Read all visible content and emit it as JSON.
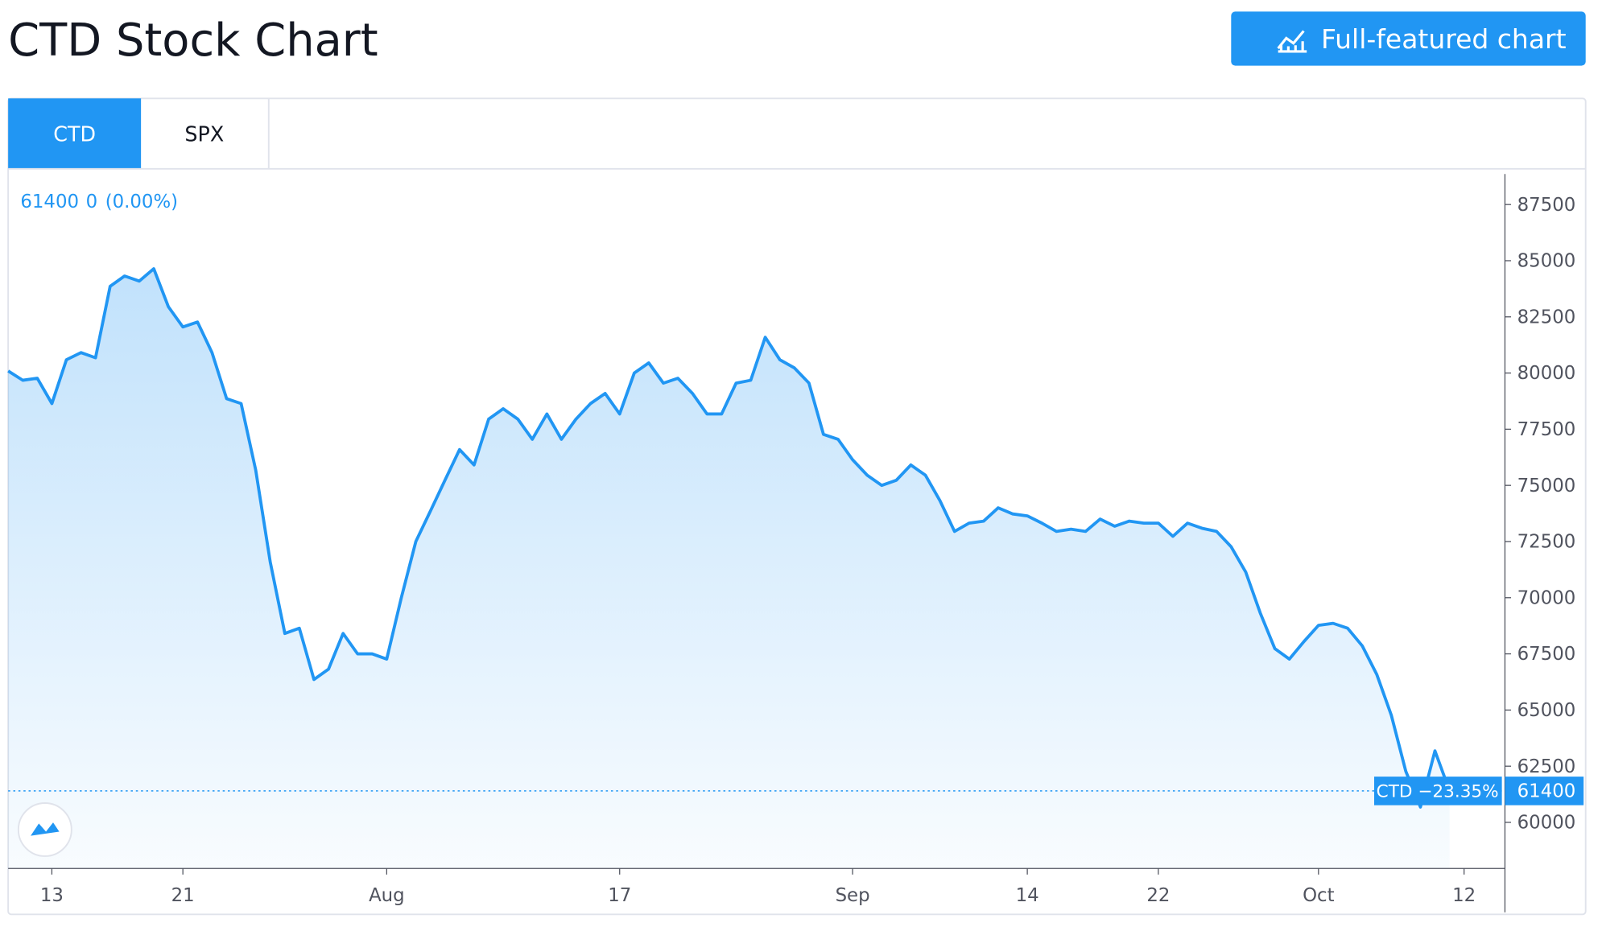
{
  "header": {
    "title": "CTD Stock Chart",
    "button": "Full-featured chart"
  },
  "tabs": [
    "CTD",
    "SPX"
  ],
  "chart_data": {
    "type": "area",
    "legend_text": {
      "price": "61400",
      "change": "0",
      "change_pct": "(0.00%)"
    },
    "last_label": {
      "text": "CTD −23.35%",
      "value": 61400
    },
    "color": "#2196f3",
    "categories": [
      null,
      null,
      null,
      "13",
      null,
      null,
      null,
      null,
      null,
      null,
      null,
      null,
      "21",
      null,
      null,
      null,
      null,
      null,
      null,
      null,
      null,
      null,
      null,
      null,
      null,
      null,
      "Aug",
      null,
      null,
      null,
      null,
      null,
      null,
      null,
      null,
      null,
      null,
      null,
      null,
      null,
      null,
      null,
      "17",
      null,
      null,
      null,
      null,
      null,
      null,
      null,
      null,
      null,
      null,
      null,
      null,
      null,
      null,
      null,
      "Sep",
      null,
      null,
      null,
      null,
      null,
      null,
      null,
      null,
      null,
      null,
      null,
      "14",
      null,
      null,
      null,
      null,
      null,
      null,
      null,
      null,
      "22",
      null,
      null,
      null,
      null,
      null,
      null,
      null,
      null,
      null,
      null,
      "Oct",
      null,
      null,
      null,
      null,
      null,
      null,
      null,
      null,
      null,
      "12"
    ],
    "values": [
      80090,
      79680,
      79770,
      78640,
      80590,
      80910,
      80680,
      83860,
      84320,
      84090,
      84640,
      82950,
      82050,
      82270,
      80910,
      78860,
      78640,
      75680,
      71590,
      68410,
      68640,
      66360,
      66820,
      68410,
      67500,
      67500,
      67270,
      70000,
      72500,
      73860,
      75230,
      76590,
      75910,
      77950,
      78410,
      77950,
      77050,
      78180,
      77050,
      77950,
      78640,
      79090,
      78180,
      80000,
      80450,
      79550,
      79770,
      79090,
      78180,
      78180,
      79550,
      79680,
      81590,
      80590,
      80230,
      79550,
      77270,
      77050,
      76140,
      75450,
      75000,
      75230,
      75910,
      75450,
      74320,
      72950,
      73320,
      73410,
      74000,
      73730,
      73640,
      73320,
      72950,
      73050,
      72950,
      73500,
      73180,
      73410,
      73320,
      73320,
      72730,
      73320,
      73090,
      72950,
      72270,
      71140,
      69320,
      67730,
      67270,
      68050,
      68770,
      68860,
      68640,
      67860,
      66590,
      64770,
      62270,
      60680,
      63180,
      61400,
      null
    ],
    "ylim": [
      57950,
      88860
    ],
    "yticks": [
      60000,
      62500,
      65000,
      67500,
      70000,
      72500,
      75000,
      77500,
      80000,
      82500,
      85000,
      87500
    ]
  }
}
